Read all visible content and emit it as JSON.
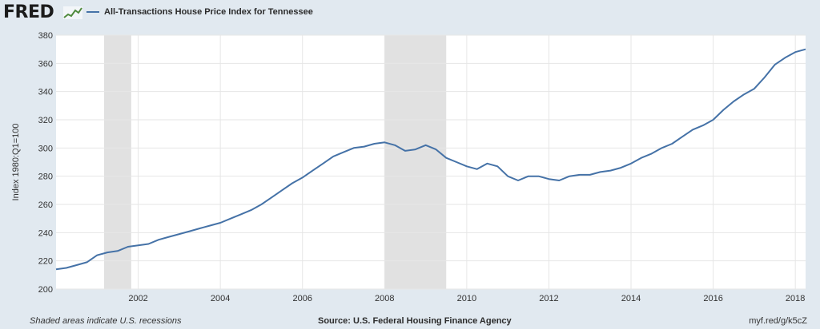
{
  "header": {
    "logo_text": "FRED",
    "logo_icon": "fred-graph-icon",
    "legend_label": "All-Transactions House Price Index for Tennessee"
  },
  "footer": {
    "note": "Shaded areas indicate U.S. recessions",
    "source": "Source: U.S. Federal Housing Finance Agency",
    "short_url": "myf.red/g/k5cZ"
  },
  "colors": {
    "background": "#e1e9f0",
    "plot_background": "#ffffff",
    "line": "#4572a7",
    "recession": "#e1e1e1",
    "grid": "#e6e6e6"
  },
  "chart_data": {
    "type": "line",
    "title": "",
    "xlabel": "",
    "ylabel": "Index 1980:Q1=100",
    "xlim": [
      2000.0,
      2018.25
    ],
    "ylim": [
      200,
      380
    ],
    "y_ticks": [
      200,
      220,
      240,
      260,
      280,
      300,
      320,
      340,
      360,
      380
    ],
    "x_ticks": [
      2002,
      2004,
      2006,
      2008,
      2010,
      2012,
      2014,
      2016,
      2018
    ],
    "grid": true,
    "legend_position": "top-left",
    "recessions": [
      {
        "start": 2001.17,
        "end": 2001.83
      },
      {
        "start": 2008.0,
        "end": 2009.5
      }
    ],
    "series": [
      {
        "name": "All-Transactions House Price Index for Tennessee",
        "x": [
          2000.0,
          2000.25,
          2000.5,
          2000.75,
          2001.0,
          2001.25,
          2001.5,
          2001.75,
          2002.0,
          2002.25,
          2002.5,
          2002.75,
          2003.0,
          2003.25,
          2003.5,
          2003.75,
          2004.0,
          2004.25,
          2004.5,
          2004.75,
          2005.0,
          2005.25,
          2005.5,
          2005.75,
          2006.0,
          2006.25,
          2006.5,
          2006.75,
          2007.0,
          2007.25,
          2007.5,
          2007.75,
          2008.0,
          2008.25,
          2008.5,
          2008.75,
          2009.0,
          2009.25,
          2009.5,
          2009.75,
          2010.0,
          2010.25,
          2010.5,
          2010.75,
          2011.0,
          2011.25,
          2011.5,
          2011.75,
          2012.0,
          2012.25,
          2012.5,
          2012.75,
          2013.0,
          2013.25,
          2013.5,
          2013.75,
          2014.0,
          2014.25,
          2014.5,
          2014.75,
          2015.0,
          2015.25,
          2015.5,
          2015.75,
          2016.0,
          2016.25,
          2016.5,
          2016.75,
          2017.0,
          2017.25,
          2017.5,
          2017.75,
          2018.0,
          2018.25
        ],
        "values": [
          214,
          215,
          217,
          219,
          224,
          226,
          227,
          230,
          231,
          232,
          235,
          237,
          239,
          241,
          243,
          245,
          247,
          250,
          253,
          256,
          260,
          265,
          270,
          275,
          279,
          284,
          289,
          294,
          297,
          300,
          301,
          303,
          304,
          302,
          298,
          299,
          302,
          299,
          293,
          290,
          287,
          285,
          289,
          287,
          280,
          277,
          280,
          280,
          278,
          277,
          280,
          281,
          281,
          283,
          284,
          286,
          289,
          293,
          296,
          300,
          303,
          308,
          313,
          316,
          320,
          327,
          333,
          338,
          342,
          350,
          359,
          364,
          368,
          370
        ]
      }
    ]
  }
}
